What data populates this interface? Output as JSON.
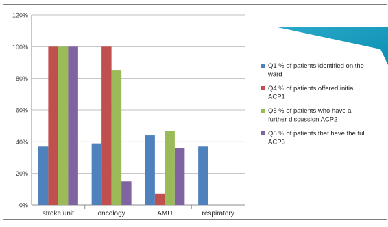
{
  "chart_data": {
    "type": "bar",
    "categories": [
      "stroke unit",
      "oncology",
      "AMU",
      "respiratory"
    ],
    "series": [
      {
        "name": "Q1  % of patients identified on the ward",
        "legend_lines": [
          "Q1  % of patients identified on the",
          "ward"
        ],
        "color": "#4f81bd",
        "values": [
          37,
          39,
          44,
          37
        ]
      },
      {
        "name": "Q4 % of patients offered initial ACP1",
        "legend_lines": [
          "Q4 % of patients offered initial",
          "ACP1"
        ],
        "color": "#c0504d",
        "values": [
          100,
          100,
          7,
          0
        ]
      },
      {
        "name": "Q5 % of patients who have a further discussion ACP2",
        "legend_lines": [
          "Q5 % of patients who have a",
          "further discussion ACP2"
        ],
        "color": "#9bbb59",
        "values": [
          100,
          85,
          47,
          0
        ]
      },
      {
        "name": "Q6 % of patients that have the full ACP3",
        "legend_lines": [
          "Q6 % of patients that have the full",
          "ACP3"
        ],
        "color": "#8064a2",
        "values": [
          100,
          15,
          36,
          0
        ]
      }
    ],
    "yticks": [
      "0%",
      "20%",
      "40%",
      "60%",
      "80%",
      "100%",
      "120%"
    ],
    "ylim": [
      0,
      120
    ],
    "grid": true,
    "legend_position": "right",
    "title": "",
    "xlabel": "",
    "ylabel": ""
  }
}
